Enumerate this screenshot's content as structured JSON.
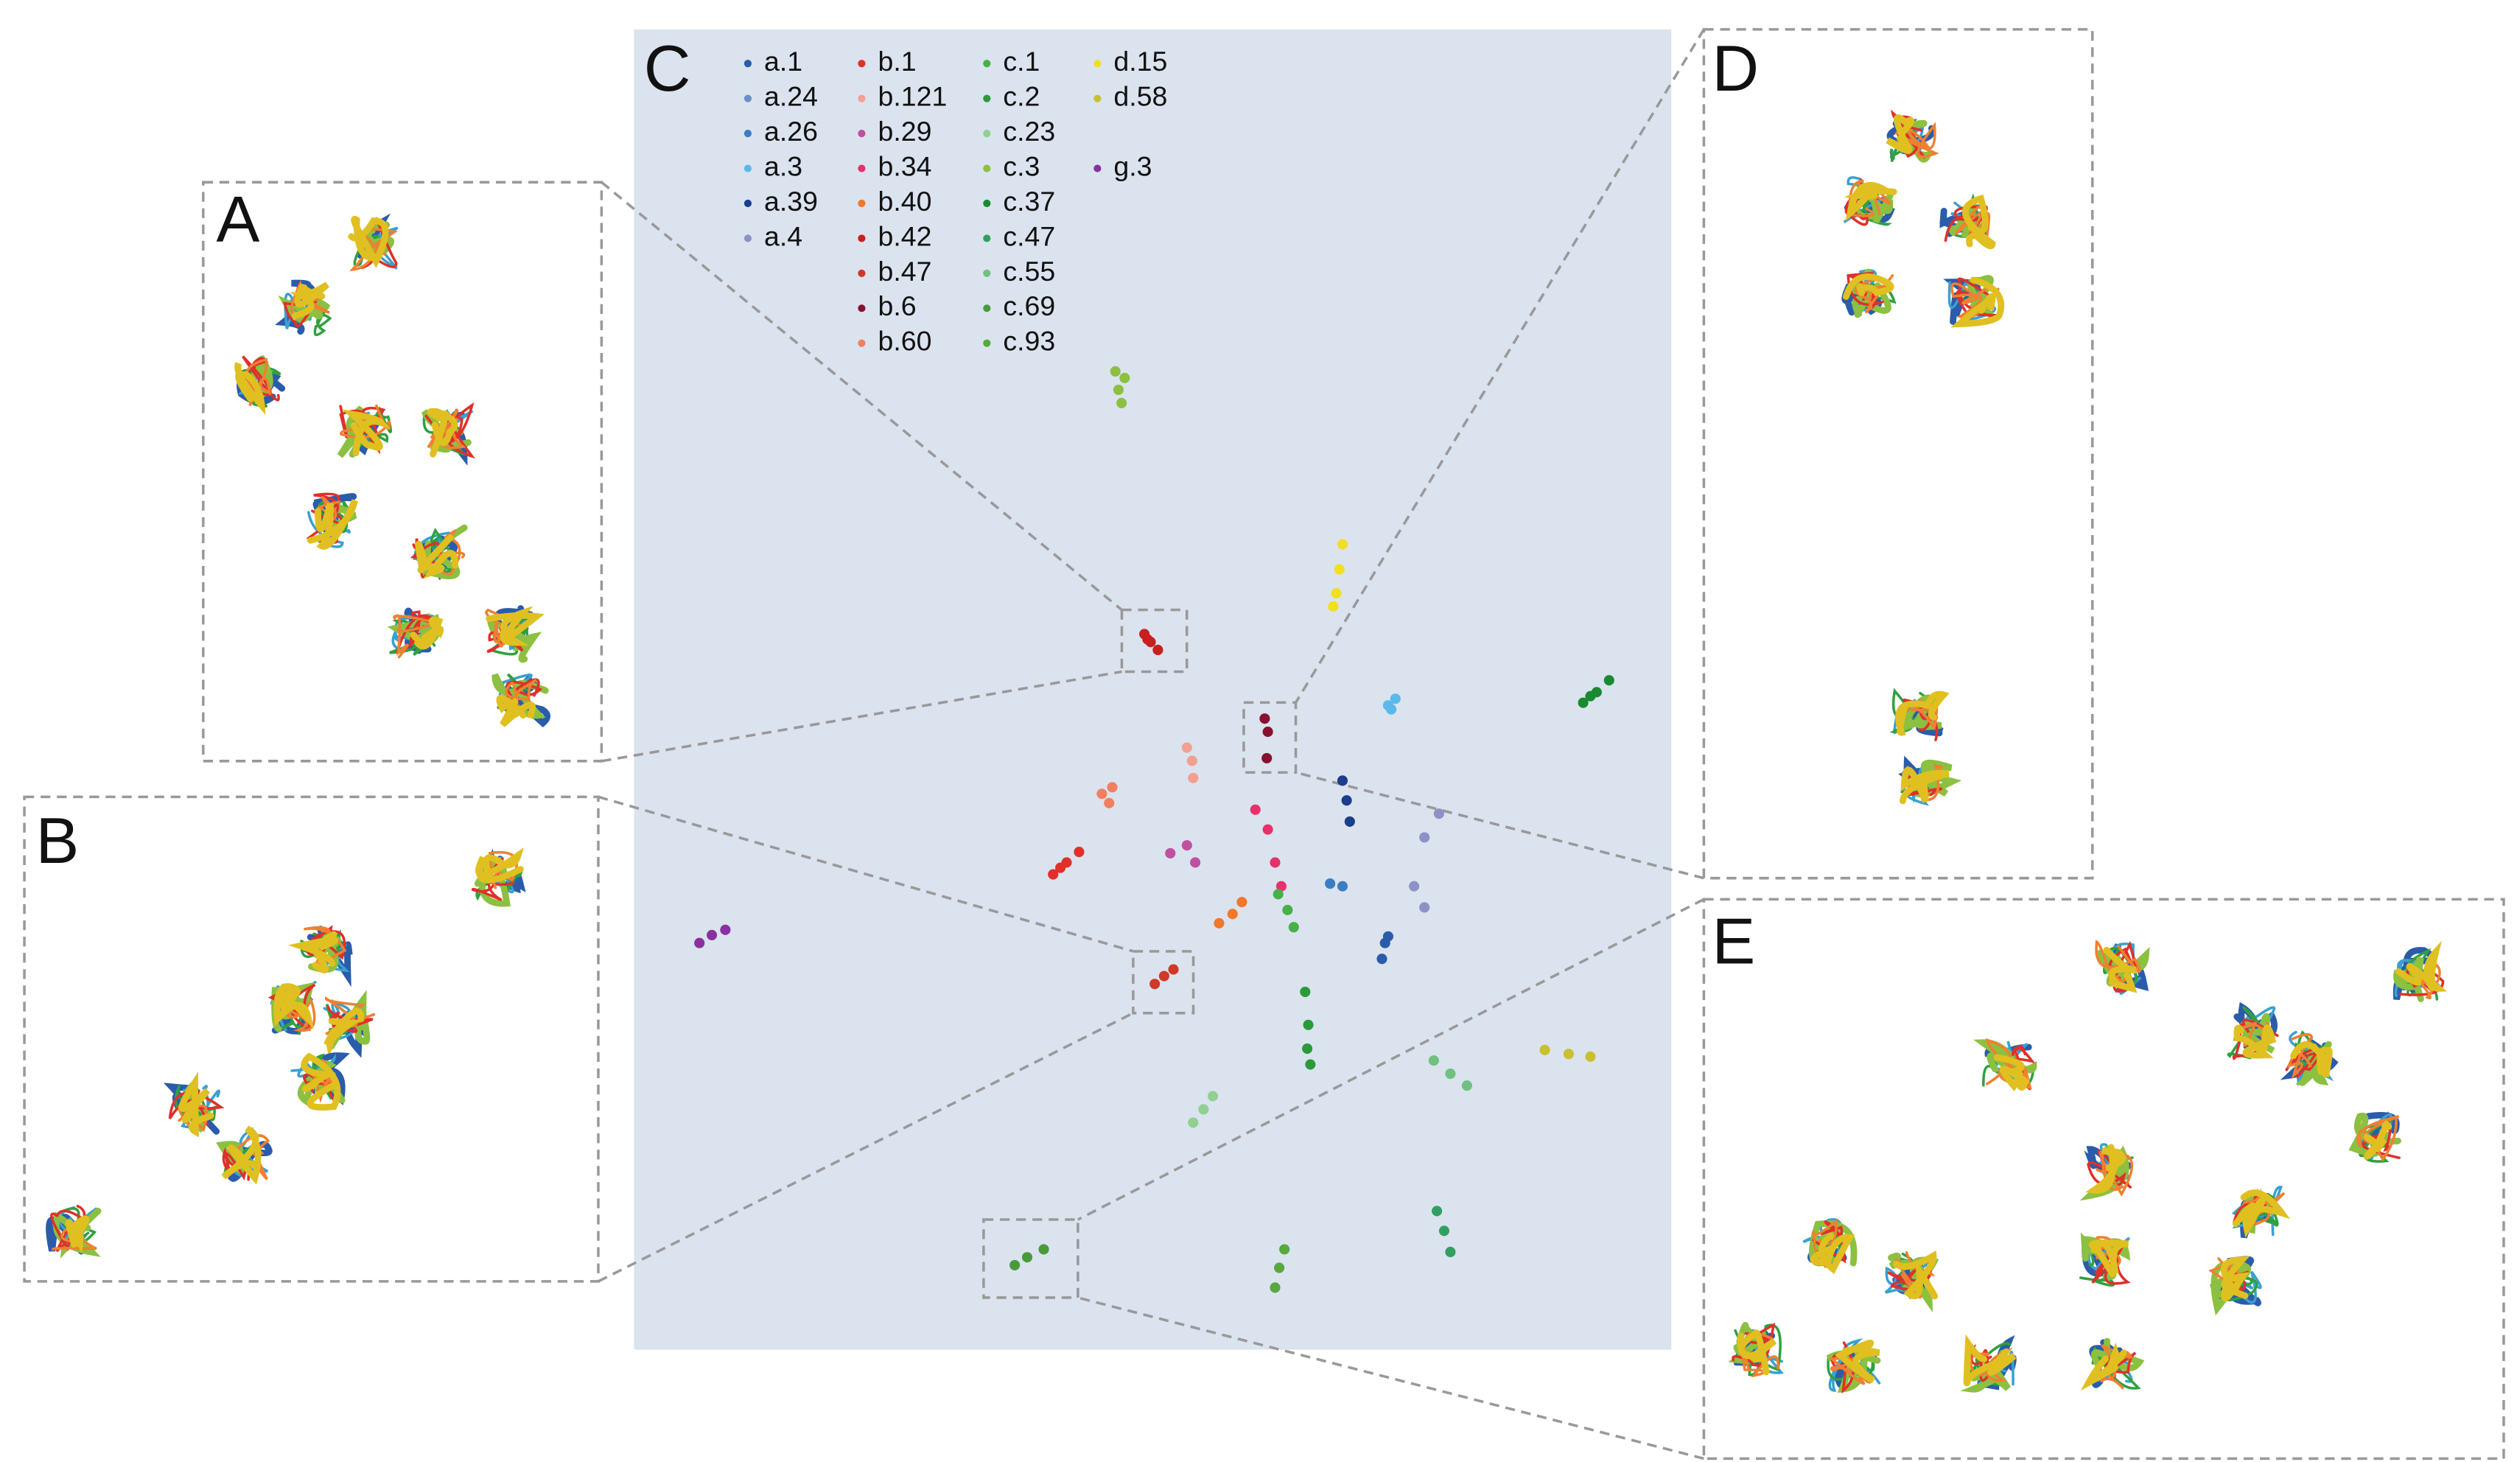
{
  "panel_labels": [
    "A",
    "B",
    "C",
    "D",
    "E"
  ],
  "chart_data": {
    "type": "scatter",
    "xlim": [
      0,
      100
    ],
    "ylim": [
      0,
      100
    ],
    "series": [
      {
        "name": "a.1",
        "color": "#2a5caa",
        "x": [
          72.1,
          72.4,
          72.7
        ],
        "y": [
          29.6,
          30.8,
          31.3
        ]
      },
      {
        "name": "a.24",
        "color": "#6b8fc9",
        "x": [],
        "y": []
      },
      {
        "name": "a.26",
        "color": "#3a7dc4",
        "x": [
          67.1,
          68.3
        ],
        "y": [
          35.3,
          35.1
        ]
      },
      {
        "name": "a.3",
        "color": "#5bb8ea",
        "x": [
          72.7,
          73.4,
          73.0
        ],
        "y": [
          48.8,
          49.3,
          48.5
        ]
      },
      {
        "name": "a.39",
        "color": "#1a3e8c",
        "x": [
          68.3,
          68.7,
          69.0
        ],
        "y": [
          43.1,
          41.6,
          40.0
        ]
      },
      {
        "name": "a.4",
        "color": "#8c92c8",
        "x": [
          77.6,
          76.2,
          75.2,
          76.2
        ],
        "y": [
          40.6,
          38.8,
          35.1,
          33.5
        ]
      },
      {
        "name": "b.1",
        "color": "#e0302a",
        "x": [
          40.4,
          41.7,
          42.9,
          41.1
        ],
        "y": [
          36.0,
          36.9,
          37.7,
          36.5
        ]
      },
      {
        "name": "b.121",
        "color": "#f2a090",
        "x": [
          53.3,
          53.8,
          53.9
        ],
        "y": [
          45.6,
          44.6,
          43.3
        ]
      },
      {
        "name": "b.29",
        "color": "#c050a0",
        "x": [
          51.7,
          53.3,
          54.1
        ],
        "y": [
          37.6,
          38.2,
          36.9
        ]
      },
      {
        "name": "b.34",
        "color": "#e8306a",
        "x": [
          59.9,
          61.1,
          61.8,
          62.4
        ],
        "y": [
          40.9,
          39.4,
          36.9,
          35.1
        ]
      },
      {
        "name": "b.40",
        "color": "#f07828",
        "x": [
          56.4,
          57.7,
          58.6
        ],
        "y": [
          32.3,
          33.0,
          33.9
        ]
      },
      {
        "name": "b.42",
        "color": "#c8201e",
        "x": [
          49.2,
          49.8,
          50.5,
          49.5
        ],
        "y": [
          54.2,
          53.6,
          53.0,
          53.8
        ]
      },
      {
        "name": "b.47",
        "color": "#d03828",
        "x": [
          50.2,
          51.1,
          52.0
        ],
        "y": [
          27.7,
          28.3,
          28.8
        ]
      },
      {
        "name": "b.6",
        "color": "#8a1030",
        "x": [
          60.8,
          61.1,
          61.0
        ],
        "y": [
          47.8,
          46.8,
          44.8
        ]
      },
      {
        "name": "b.60",
        "color": "#f08060",
        "x": [
          45.1,
          45.8,
          46.1
        ],
        "y": [
          42.1,
          41.4,
          42.6
        ]
      },
      {
        "name": "c.1",
        "color": "#48b048",
        "x": [
          62.1,
          63.0,
          63.6
        ],
        "y": [
          34.5,
          33.3,
          32.0
        ]
      },
      {
        "name": "c.2",
        "color": "#2a9a3a",
        "x": [
          64.7,
          65.0,
          64.9,
          65.2
        ],
        "y": [
          27.1,
          24.6,
          22.8,
          21.6
        ]
      },
      {
        "name": "c.23",
        "color": "#90d090",
        "x": [
          53.9,
          54.9,
          55.8
        ],
        "y": [
          17.2,
          18.2,
          19.2
        ]
      },
      {
        "name": "c.3",
        "color": "#8cc040",
        "x": [
          46.7,
          47.3,
          47.0,
          46.4
        ],
        "y": [
          72.7,
          73.6,
          71.7,
          74.1
        ]
      },
      {
        "name": "c.37",
        "color": "#1a8a30",
        "x": [
          91.5,
          92.8,
          94.0,
          92.2
        ],
        "y": [
          49.0,
          49.8,
          50.7,
          49.5
        ]
      },
      {
        "name": "c.47",
        "color": "#30a060",
        "x": [
          77.4,
          78.1,
          78.7
        ],
        "y": [
          10.5,
          9.0,
          7.4
        ]
      },
      {
        "name": "c.55",
        "color": "#70c080",
        "x": [
          77.1,
          78.7,
          80.3
        ],
        "y": [
          21.9,
          20.9,
          20.0
        ]
      },
      {
        "name": "c.69",
        "color": "#4a9a3a",
        "x": [
          36.7,
          37.9,
          39.5
        ],
        "y": [
          6.4,
          7.0,
          7.6
        ]
      },
      {
        "name": "c.93",
        "color": "#58a840",
        "x": [
          62.7,
          62.2,
          61.8
        ],
        "y": [
          7.6,
          6.2,
          4.7
        ]
      },
      {
        "name": "d.15",
        "color": "#f0e020",
        "x": [
          68.3,
          68.0,
          67.7,
          67.4
        ],
        "y": [
          61.0,
          59.1,
          57.3,
          56.3
        ]
      },
      {
        "name": "d.58",
        "color": "#c8c030",
        "x": [
          87.8,
          90.1,
          92.2
        ],
        "y": [
          22.7,
          22.4,
          22.2
        ]
      },
      {
        "name": "g.3",
        "color": "#8a30a0",
        "x": [
          6.3,
          7.5,
          8.8
        ],
        "y": [
          30.8,
          31.4,
          31.8
        ]
      }
    ]
  }
}
